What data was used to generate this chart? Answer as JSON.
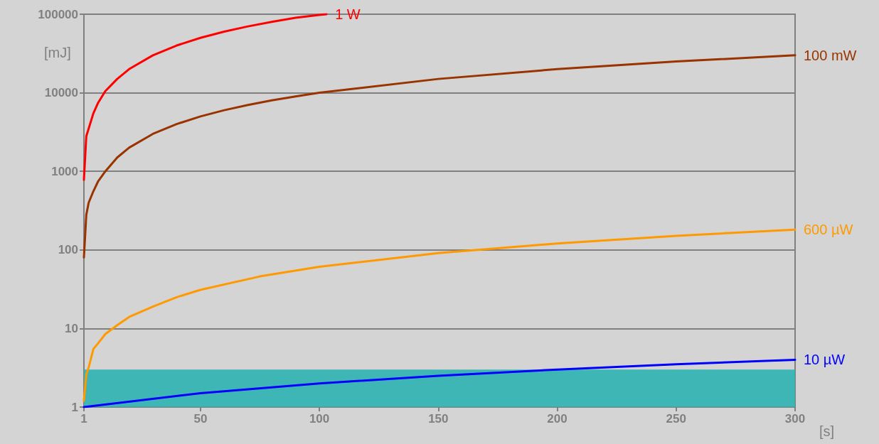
{
  "chart_data": {
    "type": "line",
    "xlabel": "[s]",
    "ylabel": "[mJ]",
    "log": "y",
    "xlim": [
      1,
      300
    ],
    "xticks": [
      1,
      50,
      100,
      150,
      200,
      250,
      300
    ],
    "ylim": [
      1,
      100000
    ],
    "yticks": [
      1,
      10,
      100,
      1000,
      10000,
      100000
    ],
    "grid": "y",
    "legend": false,
    "marker": "none",
    "line_style": "solid",
    "bands": [
      {
        "axis": "y",
        "from": 1,
        "to": 3,
        "color": "#2fb3b3"
      }
    ],
    "series": [
      {
        "name": "1 W",
        "color": "#ff0000",
        "x": [
          1,
          2,
          3,
          5,
          7,
          10,
          15,
          20,
          30,
          40,
          50,
          60,
          70,
          80,
          90,
          100,
          103
        ],
        "values": [
          780,
          2800,
          3500,
          5500,
          7500,
          10500,
          15000,
          20000,
          30000,
          40000,
          50000,
          60000,
          70000,
          80000,
          90000,
          98000,
          100000
        ]
      },
      {
        "name": "100 mW",
        "color": "#993300",
        "x": [
          1,
          2,
          3,
          5,
          7,
          10,
          15,
          20,
          30,
          40,
          50,
          60,
          70,
          80,
          90,
          100,
          150,
          200,
          250,
          300
        ],
        "values": [
          80,
          280,
          400,
          560,
          750,
          1000,
          1500,
          2000,
          3000,
          4000,
          5000,
          6000,
          7000,
          8000,
          9000,
          10000,
          15000,
          20000,
          25000,
          30000
        ]
      },
      {
        "name": "600 µW",
        "color": "#ff9900",
        "x": [
          1,
          2,
          3,
          5,
          7,
          10,
          15,
          20,
          30,
          40,
          50,
          75,
          100,
          150,
          200,
          250,
          300
        ],
        "values": [
          1.2,
          2.6,
          3.2,
          5.5,
          6.5,
          8.5,
          11,
          14,
          19,
          25,
          31,
          46,
          61,
          91,
          121,
          151,
          181
        ]
      },
      {
        "name": "10 µW",
        "color": "#0000ff",
        "x": [
          1,
          50,
          100,
          150,
          200,
          250,
          300
        ],
        "values": [
          1,
          1.5,
          2,
          2.5,
          3,
          3.5,
          4
        ]
      }
    ]
  }
}
